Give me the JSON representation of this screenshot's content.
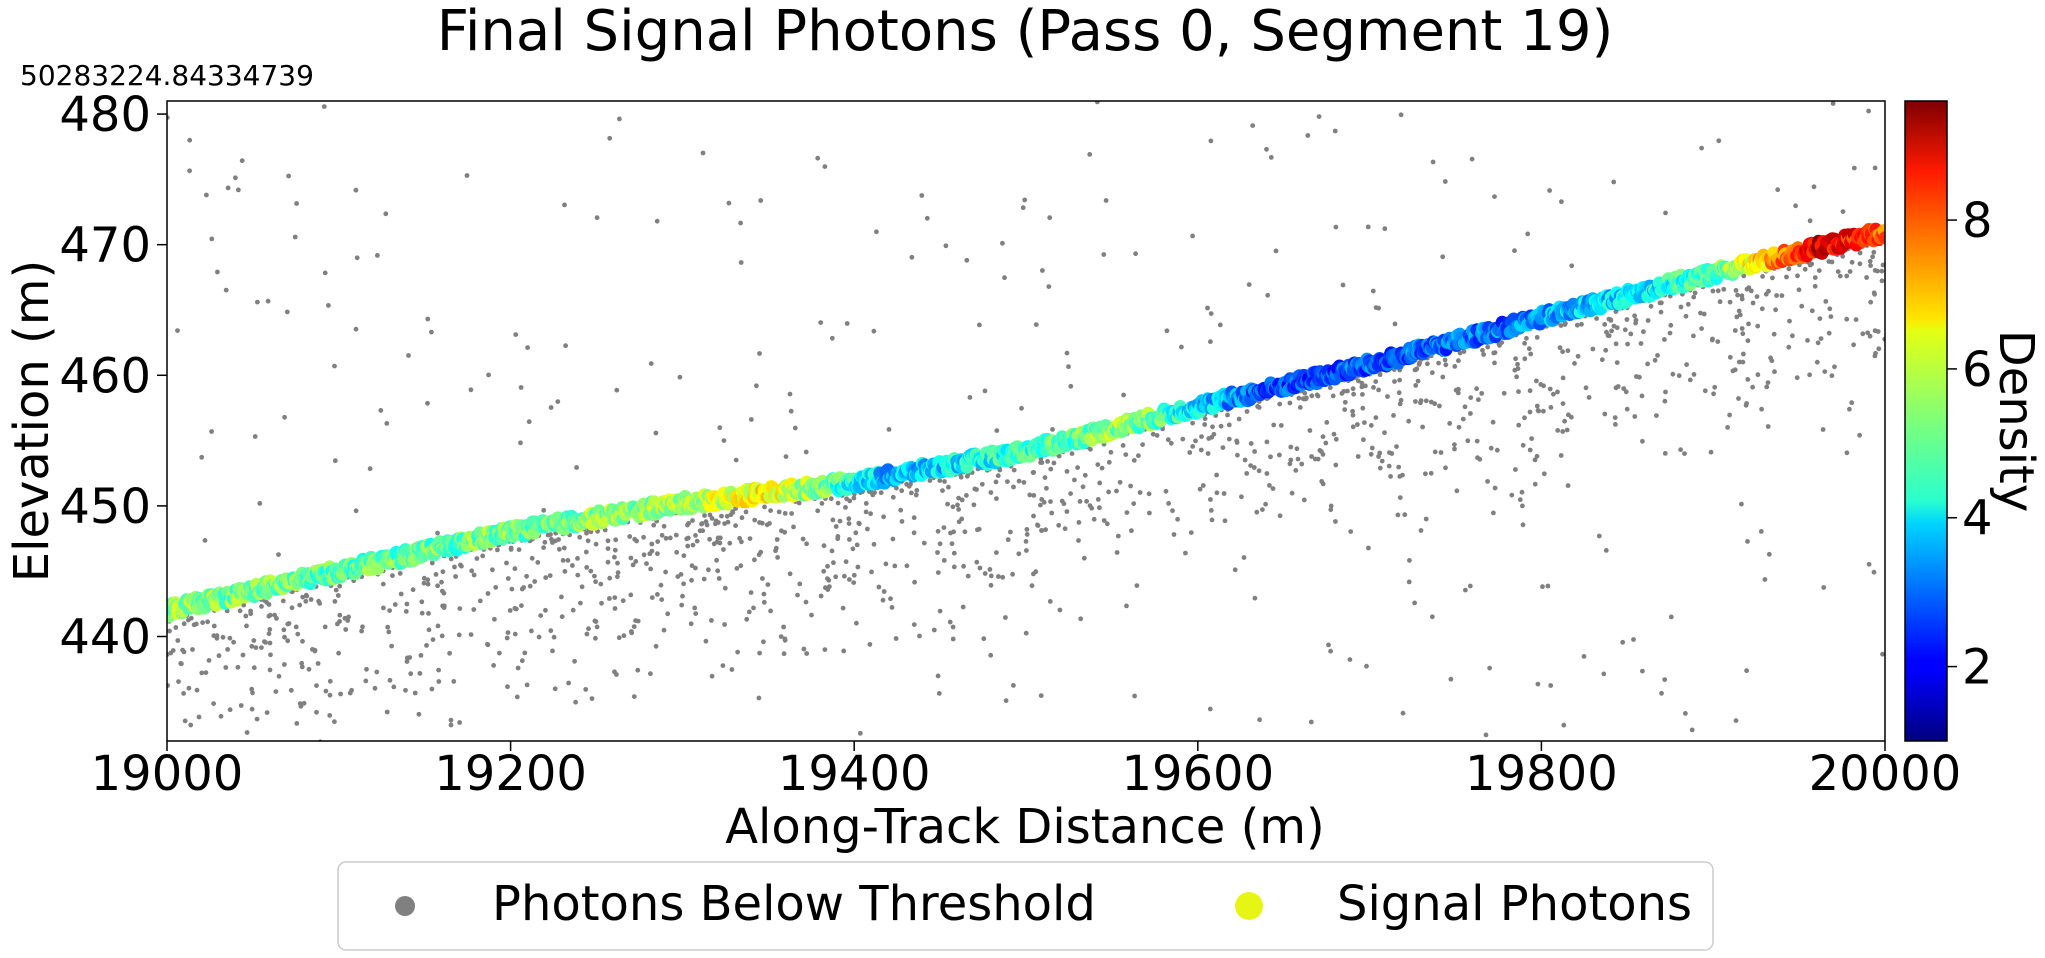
{
  "chart_data": {
    "type": "scatter",
    "title": "Final Signal Photons (Pass 0, Segment 19)",
    "offset_text": "50283224.84334739",
    "xlabel": "Along-Track Distance (m)",
    "ylabel": "Elevation (m)",
    "xlim": [
      19000,
      20000
    ],
    "ylim": [
      432,
      481
    ],
    "x_ticks": [
      19000,
      19200,
      19400,
      19600,
      19800,
      20000
    ],
    "y_ticks": [
      440,
      450,
      460,
      470,
      480
    ],
    "grid": false,
    "colorbar": {
      "label": "Density",
      "colormap": "jet",
      "range": [
        1,
        9.6
      ],
      "ticks": [
        2,
        4,
        6,
        8
      ]
    },
    "legend": {
      "placement": "bottom-center",
      "entries": [
        {
          "name": "Photons Below Threshold",
          "color": "#808080"
        },
        {
          "name": "Signal Photons",
          "color": "#e6f514"
        }
      ]
    },
    "signal_surface": [
      [
        19000,
        442.0
      ],
      [
        19100,
        445.0
      ],
      [
        19200,
        448.0
      ],
      [
        19300,
        450.2
      ],
      [
        19400,
        451.8
      ],
      [
        19500,
        454.2
      ],
      [
        19600,
        457.6
      ],
      [
        19700,
        460.8
      ],
      [
        19800,
        464.4
      ],
      [
        19900,
        467.8
      ],
      [
        20000,
        471.0
      ]
    ],
    "density_profile": [
      [
        19000,
        5.5
      ],
      [
        19100,
        5.0
      ],
      [
        19200,
        5.2
      ],
      [
        19300,
        5.6
      ],
      [
        19350,
        6.4
      ],
      [
        19420,
        3.6
      ],
      [
        19500,
        4.6
      ],
      [
        19560,
        5.5
      ],
      [
        19640,
        2.6
      ],
      [
        19720,
        3.0
      ],
      [
        19780,
        3.0
      ],
      [
        19830,
        3.8
      ],
      [
        19900,
        4.8
      ],
      [
        19960,
        8.8
      ],
      [
        20000,
        7.8
      ]
    ]
  }
}
